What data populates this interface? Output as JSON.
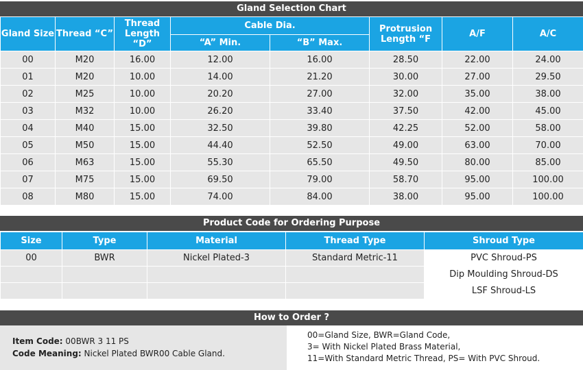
{
  "gland_chart": {
    "title": "Gland Selection Chart",
    "headers": {
      "gland_size": "Gland Size",
      "thread_c": "Thread “C”",
      "thread_length_line1": "Thread",
      "thread_length_line2": "Length “D”",
      "cable_dia": "Cable Dia.",
      "a_min": "“A” Min.",
      "b_max": "“B” Max.",
      "protrusion_line1": "Protrusion",
      "protrusion_line2": "Length “F",
      "af": "A/F",
      "ac": "A/C"
    },
    "rows": [
      [
        "00",
        "M20",
        "16.00",
        "12.00",
        "16.00",
        "28.50",
        "22.00",
        "24.00"
      ],
      [
        "01",
        "M20",
        "10.00",
        "14.00",
        "21.20",
        "30.00",
        "27.00",
        "29.50"
      ],
      [
        "02",
        "M25",
        "10.00",
        "20.20",
        "27.00",
        "32.00",
        "35.00",
        "38.00"
      ],
      [
        "03",
        "M32",
        "10.00",
        "26.20",
        "33.40",
        "37.50",
        "42.00",
        "45.00"
      ],
      [
        "04",
        "M40",
        "15.00",
        "32.50",
        "39.80",
        "42.25",
        "52.00",
        "58.00"
      ],
      [
        "05",
        "M50",
        "15.00",
        "44.40",
        "52.50",
        "49.00",
        "63.00",
        "70.00"
      ],
      [
        "06",
        "M63",
        "15.00",
        "55.30",
        "65.50",
        "49.50",
        "80.00",
        "85.00"
      ],
      [
        "07",
        "M75",
        "15.00",
        "69.50",
        "79.00",
        "58.70",
        "95.00",
        "100.00"
      ],
      [
        "08",
        "M80",
        "15.00",
        "74.00",
        "84.00",
        "38.00",
        "95.00",
        "100.00"
      ]
    ]
  },
  "product_code": {
    "title": "Product Code for Ordering Purpose",
    "headers": [
      "Size",
      "Type",
      "Material",
      "Thread Type",
      "Shroud Type"
    ],
    "rows": [
      [
        "00",
        "BWR",
        "Nickel Plated-3",
        "Standard Metric-11",
        "PVC Shroud-PS"
      ],
      [
        "",
        "",
        "",
        "",
        "Dip Moulding Shroud-DS"
      ],
      [
        "",
        "",
        "",
        "",
        "LSF Shroud-LS"
      ]
    ]
  },
  "how_to_order": {
    "title": "How to Order ?",
    "item_code_label": "Item Code:",
    "item_code_value": " 00BWR 3 11 PS",
    "code_meaning_label": "Code Meaning:",
    "code_meaning_value": " Nickel Plated BWR00 Cable Gland.",
    "notes": [
      "00=Gland Size, BWR=Gland Code,",
      "3= With Nickel Plated Brass Material,",
      "11=With Standard Metric Thread, PS= With PVC Shroud."
    ]
  }
}
